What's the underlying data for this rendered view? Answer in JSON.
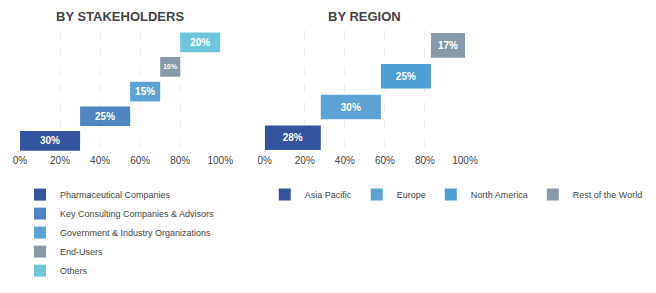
{
  "chart_data": [
    {
      "type": "bar",
      "title": "BY STAKEHOLDERS",
      "orientation": "horizontal",
      "stacked": true,
      "data_labels": true,
      "grid": true,
      "legend": "bottom",
      "tick_labels": "x",
      "xlim": [
        0,
        100
      ],
      "xticks": [
        {
          "value": 0,
          "label": "0%"
        },
        {
          "value": 20,
          "label": "20%"
        },
        {
          "value": 40,
          "label": "40%"
        },
        {
          "value": 60,
          "label": "60%"
        },
        {
          "value": 80,
          "label": "80%"
        },
        {
          "value": 100,
          "label": "100%"
        }
      ],
      "series": [
        {
          "name": "Pharmaceutical Companies",
          "color": "#3355a0",
          "values": [
            30
          ],
          "value_labels": [
            "30%"
          ]
        },
        {
          "name": "Key Consulting Companies & Advisors",
          "color": "#4f86c0",
          "values": [
            25
          ],
          "value_labels": [
            "25%"
          ]
        },
        {
          "name": "Government & Industry Organizations",
          "color": "#5ba3d5",
          "values": [
            15
          ],
          "value_labels": [
            "15%"
          ]
        },
        {
          "name": "End-Users",
          "color": "#8899aa",
          "values": [
            10
          ],
          "value_labels": [
            "10%"
          ]
        },
        {
          "name": "Others",
          "color": "#6ec6da",
          "values": [
            20
          ],
          "value_labels": [
            "20%"
          ]
        }
      ]
    },
    {
      "type": "bar",
      "title": "BY REGION",
      "orientation": "horizontal",
      "stacked": true,
      "data_labels": true,
      "grid": true,
      "legend": "bottom",
      "tick_labels": "x",
      "xlim": [
        0,
        100
      ],
      "xticks": [
        {
          "value": 0,
          "label": "0%"
        },
        {
          "value": 20,
          "label": "20%"
        },
        {
          "value": 40,
          "label": "40%"
        },
        {
          "value": 60,
          "label": "60%"
        },
        {
          "value": 80,
          "label": "80%"
        },
        {
          "value": 100,
          "label": "100%"
        }
      ],
      "series": [
        {
          "name": "Asia Pacific",
          "color": "#3355a0",
          "values": [
            28
          ],
          "value_labels": [
            "28%"
          ]
        },
        {
          "name": "Europe",
          "color": "#5ba3d5",
          "values": [
            30
          ],
          "value_labels": [
            "30%"
          ]
        },
        {
          "name": "North America",
          "color": "#4f9fd6",
          "values": [
            25
          ],
          "value_labels": [
            "25%"
          ]
        },
        {
          "name": "Rest of the World",
          "color": "#8899aa",
          "values": [
            17
          ],
          "value_labels": [
            "17%"
          ]
        }
      ]
    }
  ]
}
